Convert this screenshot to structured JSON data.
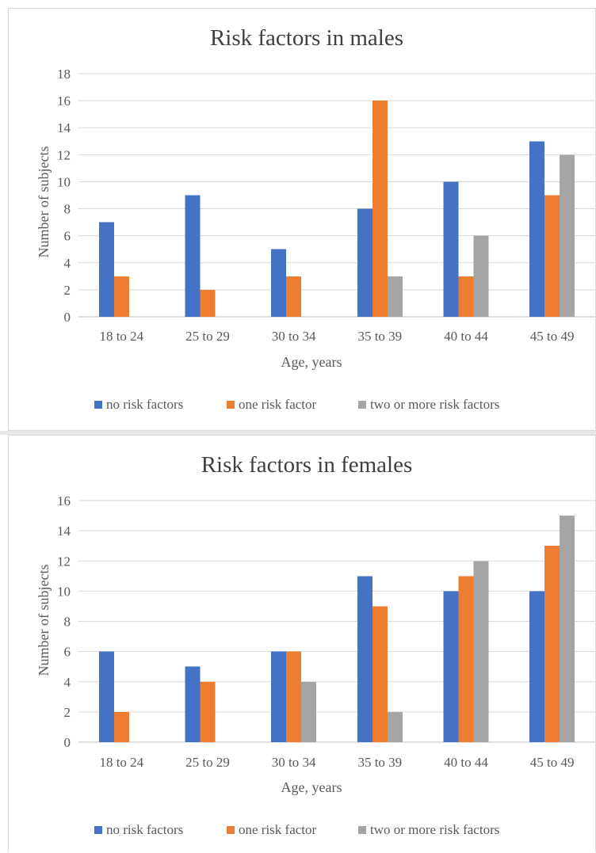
{
  "chart_data": [
    {
      "type": "bar",
      "title": "Risk factors in males",
      "xlabel": "Age, years",
      "ylabel": "Number of subjects",
      "categories": [
        "18 to 24",
        "25 to 29",
        "30 to 34",
        "35 to 39",
        "40 to 44",
        "45 to 49"
      ],
      "ylim": [
        0,
        18
      ],
      "yticks": [
        "0",
        "2",
        "4",
        "6",
        "8",
        "10",
        "12",
        "14",
        "16",
        "18"
      ],
      "grid": true,
      "legend_position": "bottom",
      "series": [
        {
          "name": "no risk factors",
          "color": "#4472c4",
          "values": [
            7,
            9,
            5,
            8,
            10,
            13
          ]
        },
        {
          "name": "one risk factor",
          "color": "#ed7d31",
          "values": [
            3,
            2,
            3,
            16,
            3,
            9
          ]
        },
        {
          "name": "two or more risk factors",
          "color": "#a5a5a5",
          "values": [
            0,
            0,
            0,
            3,
            6,
            12
          ]
        }
      ]
    },
    {
      "type": "bar",
      "title": "Risk factors in females",
      "xlabel": "Age, years",
      "ylabel": "Number of subjects",
      "categories": [
        "18 to 24",
        "25 to 29",
        "30 to 34",
        "35 to 39",
        "40 to 44",
        "45 to 49"
      ],
      "ylim": [
        0,
        16
      ],
      "yticks": [
        "0",
        "2",
        "4",
        "6",
        "8",
        "10",
        "12",
        "14",
        "16"
      ],
      "grid": true,
      "legend_position": "bottom",
      "series": [
        {
          "name": "no risk factors",
          "color": "#4472c4",
          "values": [
            6,
            5,
            6,
            11,
            10,
            10
          ]
        },
        {
          "name": "one risk factor",
          "color": "#ed7d31",
          "values": [
            2,
            4,
            6,
            9,
            11,
            13
          ]
        },
        {
          "name": "two or more risk factors",
          "color": "#a5a5a5",
          "values": [
            0,
            0,
            4,
            2,
            12,
            15
          ]
        }
      ]
    }
  ]
}
